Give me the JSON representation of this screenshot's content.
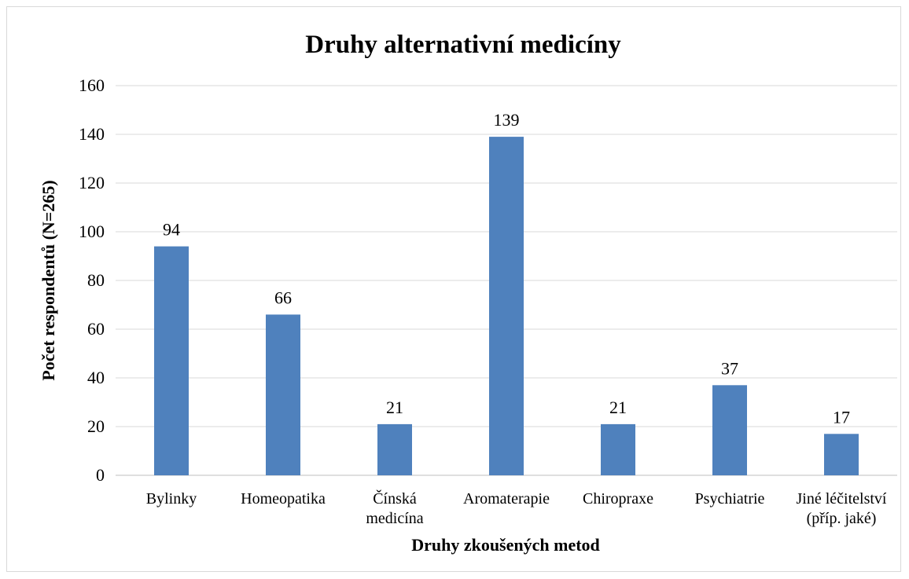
{
  "chart_data": {
    "type": "bar",
    "title": "Druhy alternativní medicíny",
    "xlabel": "Druhy zkoušených metod",
    "ylabel": "Počet respondentů (N=265)",
    "ylim": [
      0,
      160
    ],
    "yticks": [
      0,
      20,
      40,
      60,
      80,
      100,
      120,
      140,
      160
    ],
    "grid": true,
    "legend": "none",
    "color": "#4f81bd",
    "categories": [
      [
        "Bylinky"
      ],
      [
        "Homeopatika"
      ],
      [
        "Čínská",
        "medicína"
      ],
      [
        "Aromaterapie"
      ],
      [
        "Chiropraxe"
      ],
      [
        "Psychiatrie"
      ],
      [
        "Jiné léčitelství",
        "(příp. jaké)"
      ]
    ],
    "values": [
      94,
      66,
      21,
      139,
      21,
      37,
      17
    ]
  }
}
